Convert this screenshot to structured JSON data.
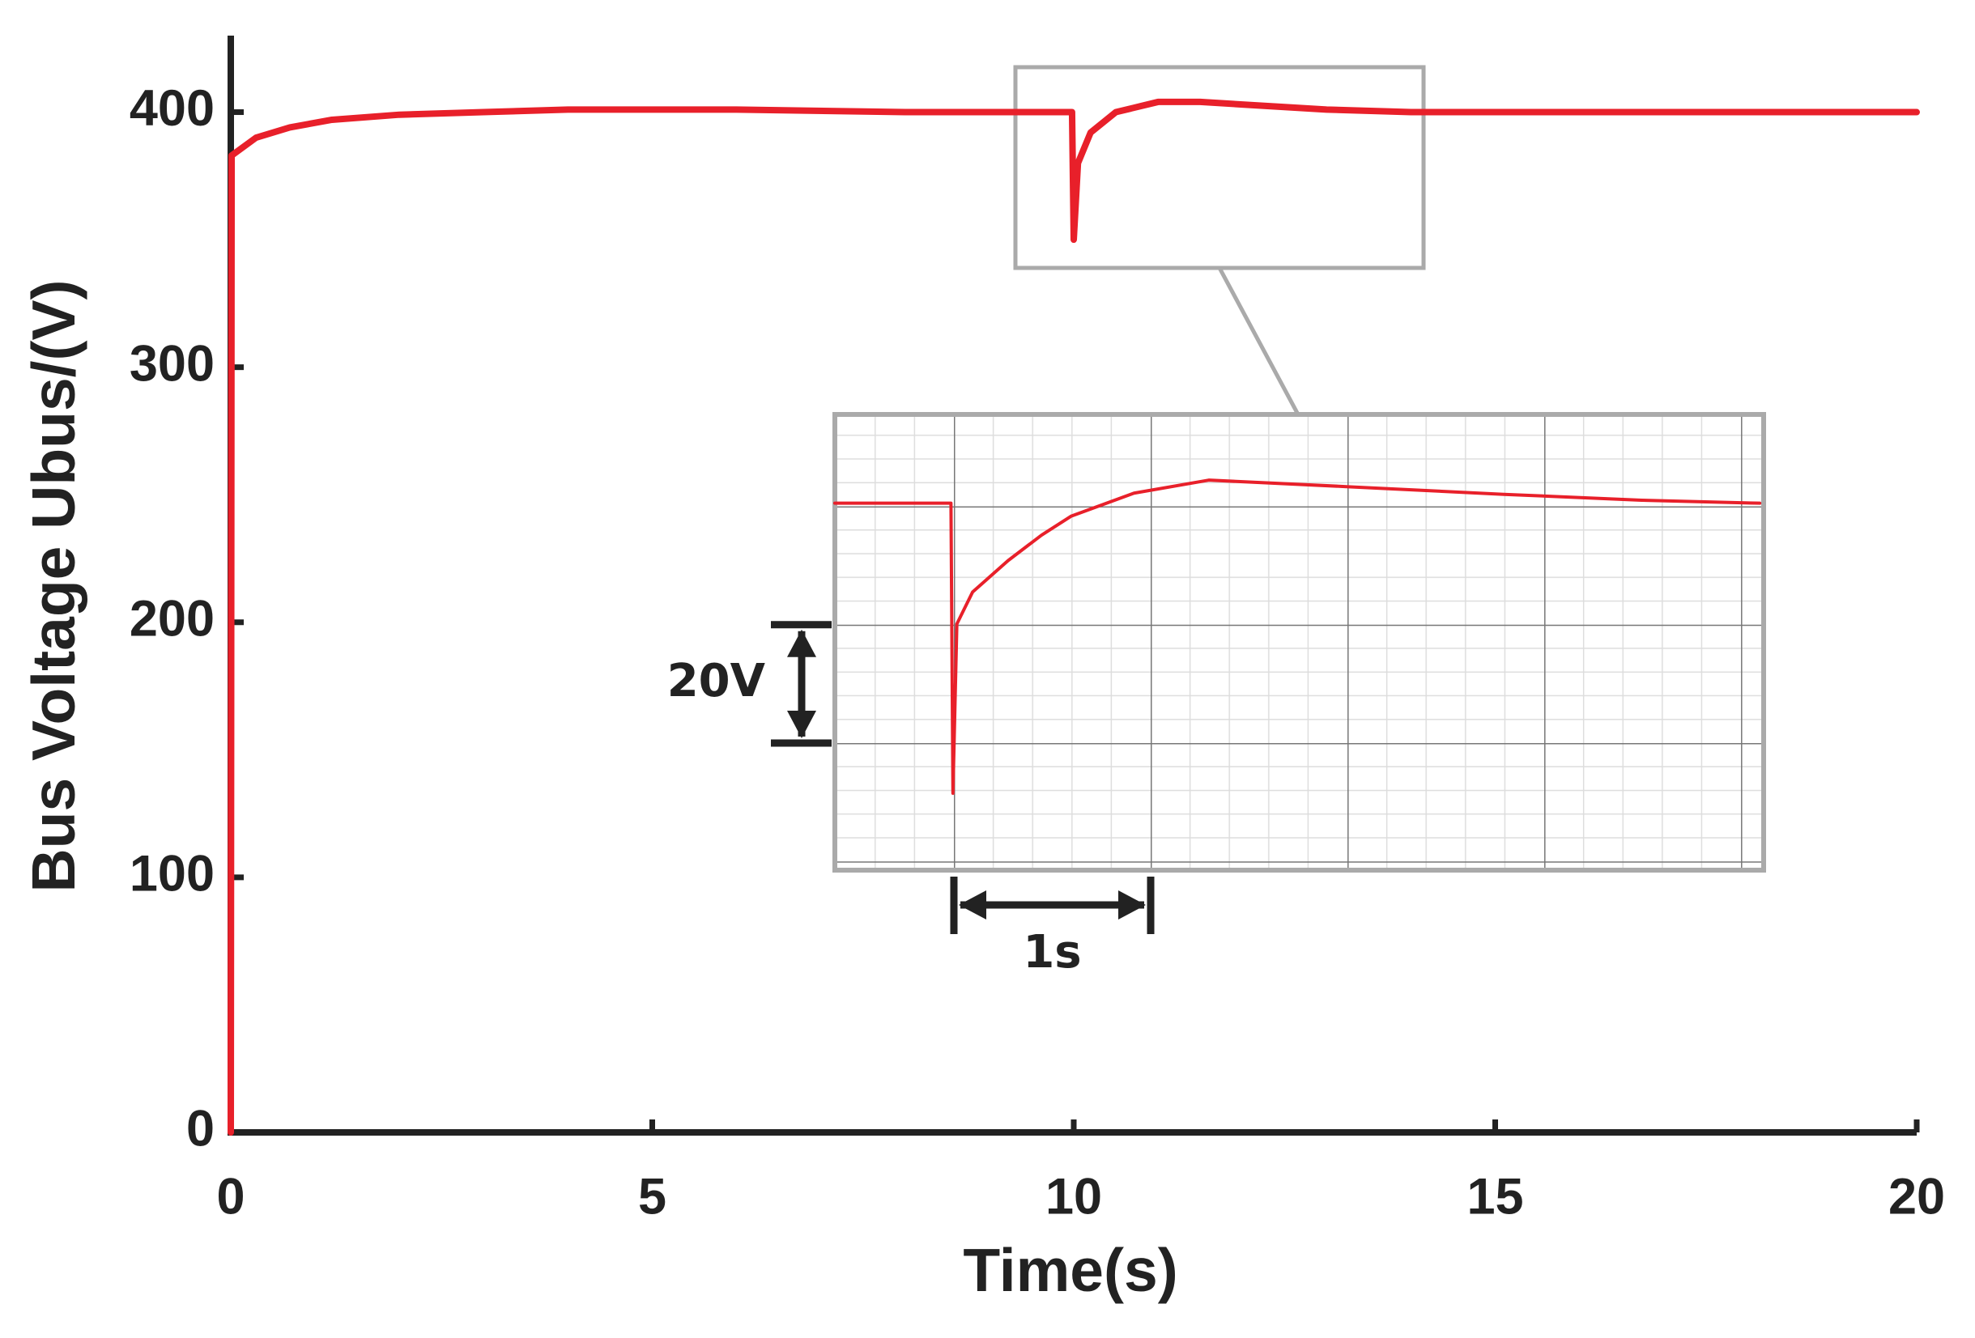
{
  "chart_data": [
    {
      "type": "line",
      "xlabel": "Time(s)",
      "ylabel": "Bus Voltage Ubus/(V)",
      "xlim": [
        0,
        20
      ],
      "ylim": [
        0,
        430
      ],
      "xticks": [
        0,
        5,
        10,
        15,
        20
      ],
      "yticks": [
        0,
        100,
        200,
        300,
        400
      ],
      "x": [
        0,
        0.01,
        0.3,
        0.7,
        1.2,
        2,
        3,
        4,
        6,
        8,
        9.98,
        10,
        10.05,
        10.2,
        10.5,
        11,
        11.5,
        12,
        13,
        14,
        16,
        20
      ],
      "series": [
        {
          "color": "#e8202a",
          "values": [
            0,
            383,
            390,
            394,
            397,
            399,
            400,
            401,
            401,
            400,
            400,
            350,
            380,
            392,
            400,
            404,
            404,
            403,
            401,
            400,
            400,
            400
          ]
        }
      ]
    },
    {
      "type": "line",
      "xlim": [
        9.4,
        14.12
      ],
      "ylim": [
        338,
        415
      ],
      "x": [
        9.4,
        9.99,
        10,
        10.02,
        10.1,
        10.28,
        10.45,
        10.6,
        10.92,
        11.3,
        12,
        12.8,
        13.5,
        14.1
      ],
      "series": [
        {
          "color": "#e8202a",
          "values": [
            400,
            400,
            351,
            379.6,
            385,
            390.3,
            394.6,
            397.8,
            401.7,
            403.9,
            402.8,
            401.5,
            400.5,
            400
          ]
        }
      ],
      "grid": true,
      "scale_bars": [
        {
          "label": "20V",
          "value": 20,
          "axis": "y"
        },
        {
          "label": "1s",
          "value": 1,
          "axis": "x"
        }
      ]
    }
  ]
}
